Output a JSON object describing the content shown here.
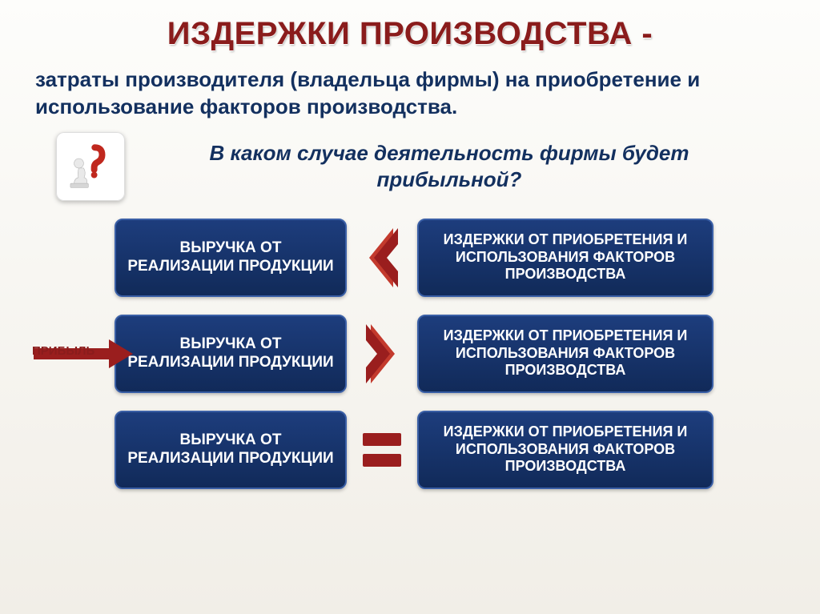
{
  "colors": {
    "title": "#8a1c1c",
    "body_text": "#13305f",
    "box_bg_top": "#1d3d7d",
    "box_bg_bottom": "#112a59",
    "box_border": "#3a5fa6",
    "box_text": "#ffffff",
    "accent_red": "#9a1e1e",
    "accent_red_light": "#c33a2d",
    "page_bg_top": "#fdfdfb",
    "page_bg_bottom": "#f1eee7",
    "icon_bg": "#ffffff"
  },
  "typography": {
    "title_size": 40,
    "definition_size": 26,
    "question_size": 26,
    "box_left_size": 19,
    "box_right_size": 18,
    "profit_label_size": 15
  },
  "title": "ИЗДЕРЖКИ ПРОИЗВОДСТВА -",
  "definition": "затраты производителя (владельца фирмы) на приобретение и использование факторов производства.",
  "question": "В каком случае деятельность фирмы будет прибыльной?",
  "icon_name": "thinker-question-icon",
  "profit_label": "ПРИБЫЛЬ",
  "rows": [
    {
      "left": "ВЫРУЧКА ОТ РЕАЛИЗАЦИИ ПРОДУКЦИИ",
      "op": "lt",
      "right": "ИЗДЕРЖКИ ОТ ПРИОБРЕТЕНИЯ И ИСПОЛЬЗОВАНИЯ ФАКТОРОВ ПРОИЗВОДСТВА",
      "profit_arrow": false
    },
    {
      "left": "ВЫРУЧКА ОТ РЕАЛИЗАЦИИ ПРОДУКЦИИ",
      "op": "gt",
      "right": "ИЗДЕРЖКИ ОТ ПРИОБРЕТЕНИЯ И ИСПОЛЬЗОВАНИЯ ФАКТОРОВ ПРОИЗВОДСТВА",
      "profit_arrow": true
    },
    {
      "left": "ВЫРУЧКА ОТ РЕАЛИЗАЦИИ ПРОДУКЦИИ",
      "op": "eq",
      "right": "ИЗДЕРЖКИ ОТ ПРИОБРЕТЕНИЯ И ИСПОЛЬЗОВАНИЯ ФАКТОРОВ ПРОИЗВОДСТВА",
      "profit_arrow": false
    }
  ],
  "operators": {
    "lt": {
      "kind": "chevron",
      "dir": "left",
      "color": "#9a1e1e"
    },
    "gt": {
      "kind": "chevron",
      "dir": "right",
      "color": "#9a1e1e"
    },
    "eq": {
      "kind": "equals",
      "color": "#9a1e1e"
    }
  }
}
